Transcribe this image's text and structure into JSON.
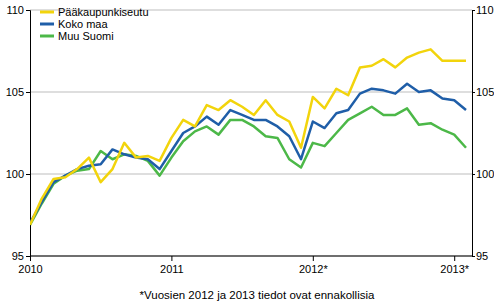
{
  "chart_data": {
    "type": "line",
    "categories": [
      "2010",
      null,
      null,
      null,
      null,
      null,
      null,
      null,
      null,
      null,
      null,
      null,
      "2011",
      null,
      null,
      null,
      null,
      null,
      null,
      null,
      null,
      null,
      null,
      null,
      "2012*",
      null,
      null,
      null,
      null,
      null,
      null,
      null,
      null,
      null,
      null,
      null,
      "2013*",
      null
    ],
    "series": [
      {
        "name": "Pääkaupunkiseutu",
        "color": "#f2d40c",
        "values": [
          96.9,
          98.5,
          99.7,
          99.8,
          100.3,
          101.0,
          99.5,
          100.3,
          101.9,
          101.0,
          101.1,
          100.8,
          102.2,
          103.3,
          102.9,
          104.2,
          103.9,
          104.5,
          104.1,
          103.6,
          104.5,
          103.6,
          103.2,
          101.6,
          104.7,
          104.0,
          105.2,
          104.8,
          106.5,
          106.6,
          107.0,
          106.5,
          107.1,
          107.4,
          107.6,
          106.9,
          106.9,
          106.9
        ]
      },
      {
        "name": "Koko maa",
        "color": "#1f5ea8",
        "values": [
          97.0,
          98.3,
          99.5,
          99.9,
          100.3,
          100.5,
          100.6,
          101.5,
          101.2,
          101.0,
          100.9,
          100.3,
          101.4,
          102.5,
          102.9,
          103.5,
          103.0,
          103.9,
          103.6,
          103.3,
          103.3,
          102.9,
          102.3,
          100.9,
          103.2,
          102.8,
          103.7,
          103.9,
          104.9,
          105.2,
          105.1,
          104.9,
          105.5,
          105.0,
          105.1,
          104.6,
          104.5,
          103.9
        ]
      },
      {
        "name": "Muu Suomi",
        "color": "#4cb848",
        "values": [
          96.9,
          98.2,
          99.4,
          99.9,
          100.2,
          100.3,
          101.4,
          100.9,
          101.2,
          101.1,
          100.8,
          99.9,
          101.0,
          102.0,
          102.6,
          102.9,
          102.4,
          103.3,
          103.3,
          102.9,
          102.3,
          102.2,
          100.9,
          100.4,
          101.9,
          101.7,
          102.5,
          103.3,
          103.7,
          104.1,
          103.6,
          103.6,
          104.0,
          103.0,
          103.1,
          102.7,
          102.4,
          101.6
        ]
      }
    ],
    "ylim": [
      95,
      110
    ],
    "yticks": [
      95,
      100,
      105,
      110
    ],
    "grid": true,
    "legend": "upper left",
    "annotations": [
      "*Vuosien 2012 ja 2013 tiedot ovat ennakollisia"
    ]
  }
}
